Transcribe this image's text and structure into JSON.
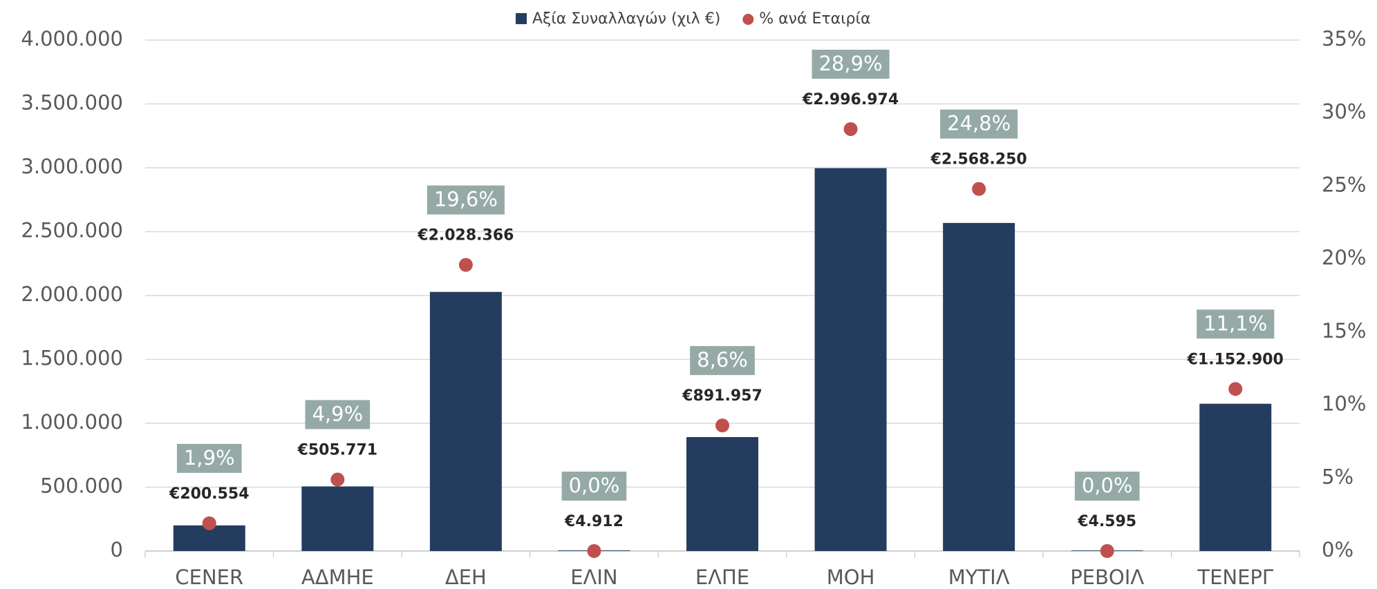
{
  "chart_data": {
    "type": "bar_dot",
    "categories": [
      "CENER",
      "ΑΔΜΗΕ",
      "ΔΕΗ",
      "ΕΛΙΝ",
      "ΕΛΠΕ",
      "ΜΟΗ",
      "ΜΥΤΙΛ",
      "ΡΕΒΟΙΛ",
      "ΤΕΝΕΡΓ"
    ],
    "series": [
      {
        "name": "Αξία Συναλλαγών (χιλ €)",
        "color": "#243d5f",
        "values": [
          200554,
          505771,
          2028366,
          4912,
          891957,
          2996974,
          2568250,
          4595,
          1152900
        ],
        "value_labels": [
          "€200.554",
          "€505.771",
          "€2.028.366",
          "€4.912",
          "€891.957",
          "€2.996.974",
          "€2.568.250",
          "€4.595",
          "€1.152.900"
        ]
      },
      {
        "name": "% ανά Εταιρία",
        "color": "#c0504d",
        "axis": "y2",
        "values": [
          1.9,
          4.9,
          19.6,
          0.0,
          8.6,
          28.9,
          24.8,
          0.0,
          11.1
        ],
        "value_labels": [
          "1,9%",
          "4,9%",
          "19,6%",
          "0,0%",
          "8,6%",
          "28,9%",
          "24,8%",
          "0,0%",
          "11,1%"
        ]
      }
    ],
    "ylim": [
      0,
      4000000
    ],
    "yticks": [
      0,
      {
        "value": 500000,
        "label": "500.000"
      },
      {
        "value": 1000000,
        "label": "1.000.000"
      },
      {
        "value": 1500000,
        "label": "1.500.000"
      },
      {
        "value": 2000000,
        "label": "2.000.000"
      },
      {
        "value": 2500000,
        "label": "2.500.000"
      },
      {
        "value": 3000000,
        "label": "3.000.000"
      },
      {
        "value": 3500000,
        "label": "3.500.000"
      },
      {
        "value": 4000000,
        "label": "4.000.000"
      }
    ],
    "y2lim": [
      0,
      35
    ],
    "y2ticks": [
      {
        "value": 0,
        "label": "0%"
      },
      {
        "value": 5,
        "label": "5%"
      },
      {
        "value": 10,
        "label": "10%"
      },
      {
        "value": 15,
        "label": "15%"
      },
      {
        "value": 20,
        "label": "20%"
      },
      {
        "value": 25,
        "label": "25%"
      },
      {
        "value": 30,
        "label": "30%"
      },
      {
        "value": 35,
        "label": "35%"
      }
    ],
    "grid": true,
    "legend": "top",
    "label_box_color": "#95aaa6"
  }
}
